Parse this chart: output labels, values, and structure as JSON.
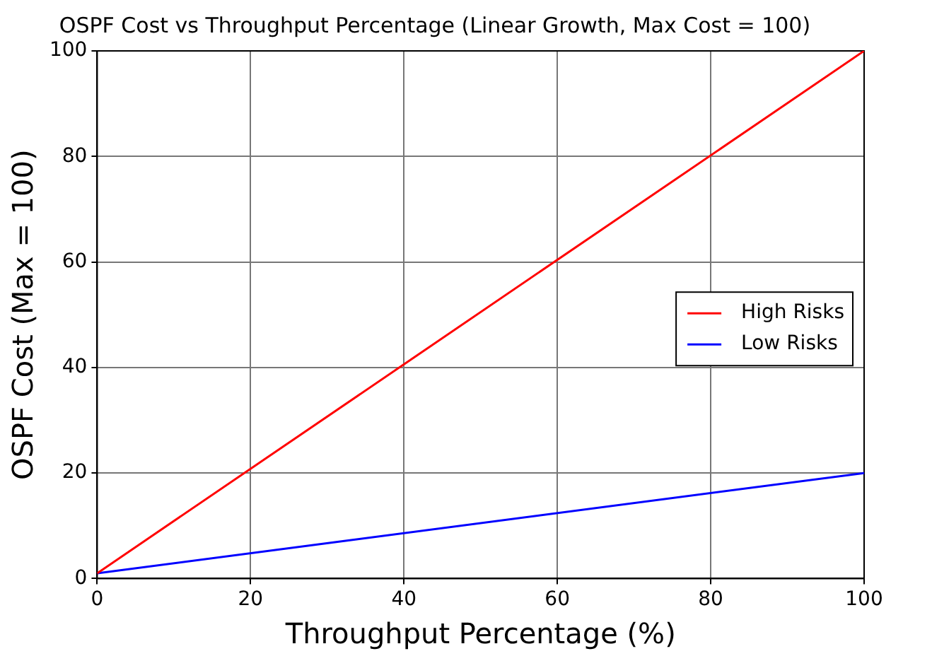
{
  "chart_data": {
    "type": "line",
    "title": "OSPF Cost vs Throughput Percentage (Linear Growth, Max Cost = 100)",
    "xlabel": "Throughput Percentage (%)",
    "ylabel": "OSPF Cost (Max = 100)",
    "x": [
      0,
      100
    ],
    "series": [
      {
        "name": "High Risks",
        "color": "#ff0000",
        "values": [
          1,
          100
        ]
      },
      {
        "name": "Low Risks",
        "color": "#0000ff",
        "values": [
          1,
          20
        ]
      }
    ],
    "xlim": [
      0,
      100
    ],
    "ylim": [
      0,
      100
    ],
    "xticks": [
      0,
      20,
      40,
      60,
      80,
      100
    ],
    "yticks": [
      0,
      20,
      40,
      60,
      80,
      100
    ],
    "grid": true,
    "legend": "right",
    "marker": "none",
    "line_style": "solid"
  }
}
